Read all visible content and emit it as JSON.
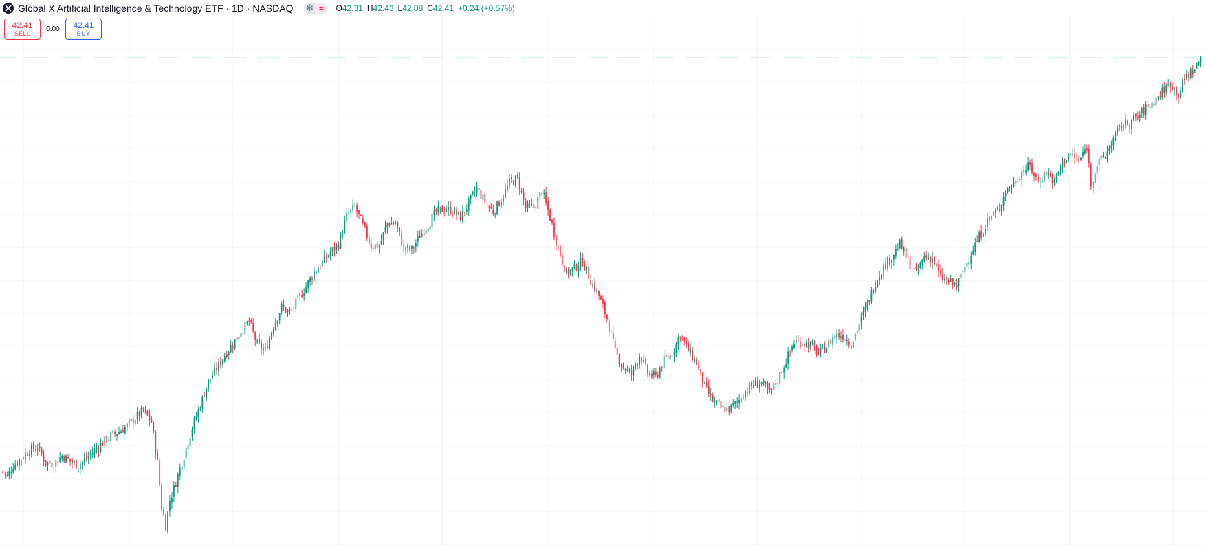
{
  "header": {
    "title": "Global X Artificial Intelligence & Technology ETF · 1D · NASDAQ",
    "ohlc": [
      {
        "label": "O",
        "value": "42.31"
      },
      {
        "label": "H",
        "value": "42.43"
      },
      {
        "label": "L",
        "value": "42.08"
      },
      {
        "label": "C",
        "value": "42.41"
      }
    ],
    "change": "+0.24 (+0.57%)",
    "icons": [
      "snowflake-icon",
      "approx-icon"
    ]
  },
  "trade": {
    "sell_price": "42.41",
    "sell_label": "SELL",
    "spread": "0.00",
    "buy_price": "42.41",
    "buy_label": "BUY"
  },
  "colors": {
    "up": "#089981",
    "down": "#f23645",
    "grid": "#f0f3fa",
    "price_line": "#089981"
  },
  "chart_data": {
    "type": "candlestick",
    "interval": "1D",
    "last_close": 42.41,
    "ylim": [
      8.0,
      43.5
    ],
    "grid": true,
    "price_path": [
      [
        0,
        12.9
      ],
      [
        3,
        12.5
      ],
      [
        6,
        13.3
      ],
      [
        10,
        13.8
      ],
      [
        14,
        14.4
      ],
      [
        18,
        14.6
      ],
      [
        22,
        13.5
      ],
      [
        26,
        13.4
      ],
      [
        30,
        14.0
      ],
      [
        34,
        13.6
      ],
      [
        38,
        13.3
      ],
      [
        42,
        13.8
      ],
      [
        46,
        14.4
      ],
      [
        50,
        14.9
      ],
      [
        54,
        15.4
      ],
      [
        58,
        15.7
      ],
      [
        62,
        16.1
      ],
      [
        66,
        16.7
      ],
      [
        70,
        17.2
      ],
      [
        74,
        16.4
      ],
      [
        77,
        13.5
      ],
      [
        79,
        10.3
      ],
      [
        81,
        9.0
      ],
      [
        83,
        10.8
      ],
      [
        86,
        12.1
      ],
      [
        90,
        14.0
      ],
      [
        94,
        16.0
      ],
      [
        98,
        17.6
      ],
      [
        102,
        19.3
      ],
      [
        106,
        20.2
      ],
      [
        110,
        21.2
      ],
      [
        114,
        22.0
      ],
      [
        118,
        22.9
      ],
      [
        122,
        23.6
      ],
      [
        126,
        21.9
      ],
      [
        130,
        21.5
      ],
      [
        134,
        23.3
      ],
      [
        138,
        24.6
      ],
      [
        142,
        24.2
      ],
      [
        146,
        25.1
      ],
      [
        150,
        26.1
      ],
      [
        154,
        27.1
      ],
      [
        158,
        27.8
      ],
      [
        162,
        28.5
      ],
      [
        166,
        29.1
      ],
      [
        170,
        31.1
      ],
      [
        174,
        31.8
      ],
      [
        178,
        30.4
      ],
      [
        182,
        29.0
      ],
      [
        186,
        29.0
      ],
      [
        190,
        30.6
      ],
      [
        194,
        30.6
      ],
      [
        198,
        28.8
      ],
      [
        202,
        28.7
      ],
      [
        206,
        29.7
      ],
      [
        210,
        30.5
      ],
      [
        214,
        31.4
      ],
      [
        218,
        31.6
      ],
      [
        222,
        31.5
      ],
      [
        226,
        31.0
      ],
      [
        230,
        32.0
      ],
      [
        234,
        33.1
      ],
      [
        238,
        32.1
      ],
      [
        242,
        31.4
      ],
      [
        246,
        32.3
      ],
      [
        250,
        33.5
      ],
      [
        254,
        33.8
      ],
      [
        258,
        31.7
      ],
      [
        262,
        31.7
      ],
      [
        266,
        32.9
      ],
      [
        270,
        31.0
      ],
      [
        274,
        28.8
      ],
      [
        278,
        27.0
      ],
      [
        282,
        27.4
      ],
      [
        286,
        27.9
      ],
      [
        290,
        26.5
      ],
      [
        294,
        25.4
      ],
      [
        298,
        23.8
      ],
      [
        302,
        21.4
      ],
      [
        306,
        20.3
      ],
      [
        310,
        19.8
      ],
      [
        314,
        21.2
      ],
      [
        318,
        19.9
      ],
      [
        322,
        19.6
      ],
      [
        326,
        20.8
      ],
      [
        330,
        21.3
      ],
      [
        334,
        22.7
      ],
      [
        338,
        21.5
      ],
      [
        342,
        20.6
      ],
      [
        346,
        18.9
      ],
      [
        350,
        17.9
      ],
      [
        354,
        17.4
      ],
      [
        358,
        17.3
      ],
      [
        362,
        17.8
      ],
      [
        366,
        18.6
      ],
      [
        370,
        19.1
      ],
      [
        374,
        19.2
      ],
      [
        378,
        18.4
      ],
      [
        382,
        19.4
      ],
      [
        386,
        20.8
      ],
      [
        390,
        22.1
      ],
      [
        394,
        22.1
      ],
      [
        398,
        21.9
      ],
      [
        402,
        21.3
      ],
      [
        406,
        21.8
      ],
      [
        410,
        22.6
      ],
      [
        414,
        22.6
      ],
      [
        418,
        22.0
      ],
      [
        422,
        23.4
      ],
      [
        426,
        24.8
      ],
      [
        430,
        26.4
      ],
      [
        434,
        27.5
      ],
      [
        438,
        28.2
      ],
      [
        442,
        29.1
      ],
      [
        446,
        27.9
      ],
      [
        450,
        27.0
      ],
      [
        454,
        28.2
      ],
      [
        458,
        28.1
      ],
      [
        462,
        26.7
      ],
      [
        466,
        26.4
      ],
      [
        470,
        26.1
      ],
      [
        474,
        27.5
      ],
      [
        478,
        28.8
      ],
      [
        482,
        29.9
      ],
      [
        486,
        31.0
      ],
      [
        490,
        31.4
      ],
      [
        494,
        32.9
      ],
      [
        498,
        33.4
      ],
      [
        502,
        34.3
      ],
      [
        506,
        34.7
      ],
      [
        510,
        33.5
      ],
      [
        514,
        34.3
      ],
      [
        518,
        33.5
      ],
      [
        522,
        35.0
      ],
      [
        526,
        35.5
      ],
      [
        530,
        35.0
      ],
      [
        534,
        36.1
      ],
      [
        536,
        33.4
      ],
      [
        539,
        34.8
      ],
      [
        543,
        35.4
      ],
      [
        547,
        36.6
      ],
      [
        551,
        37.6
      ],
      [
        555,
        37.8
      ],
      [
        559,
        38.2
      ],
      [
        563,
        38.8
      ],
      [
        567,
        39.3
      ],
      [
        571,
        40.0
      ],
      [
        575,
        40.6
      ],
      [
        579,
        39.8
      ],
      [
        583,
        41.2
      ],
      [
        587,
        41.6
      ],
      [
        590,
        42.41
      ]
    ],
    "n_candles": 591
  }
}
